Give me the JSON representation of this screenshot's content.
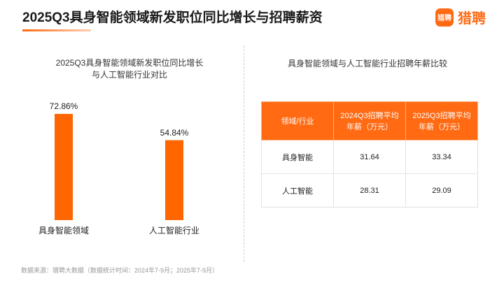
{
  "header": {
    "title": "2025Q3具身智能领域新发职位同比增长与招聘薪资",
    "logo_icon": "猎聘",
    "logo_text": "猎聘"
  },
  "chart_data": {
    "type": "bar",
    "title": "2025Q3具身智能领域新发职位同比增长\n与人工智能行业对比",
    "categories": [
      "具身智能领域",
      "人工智能行业"
    ],
    "values": [
      72.86,
      54.84
    ],
    "value_labels": [
      "72.86%",
      "54.84%"
    ],
    "color": "#ff6600"
  },
  "table": {
    "title": "具身智能领域与人工智能行业招聘年薪比较",
    "header": [
      "领域/行业",
      "2024Q3招聘平均年薪（万元）",
      "2025Q3招聘平均年薪（万元）"
    ],
    "rows": [
      [
        "具身智能",
        31.64,
        33.34
      ],
      [
        "人工智能",
        28.31,
        29.09
      ]
    ]
  },
  "source": "数据来源：猎聘大数据（数据统计时间：2024年7-9月；2025年7-9月）"
}
